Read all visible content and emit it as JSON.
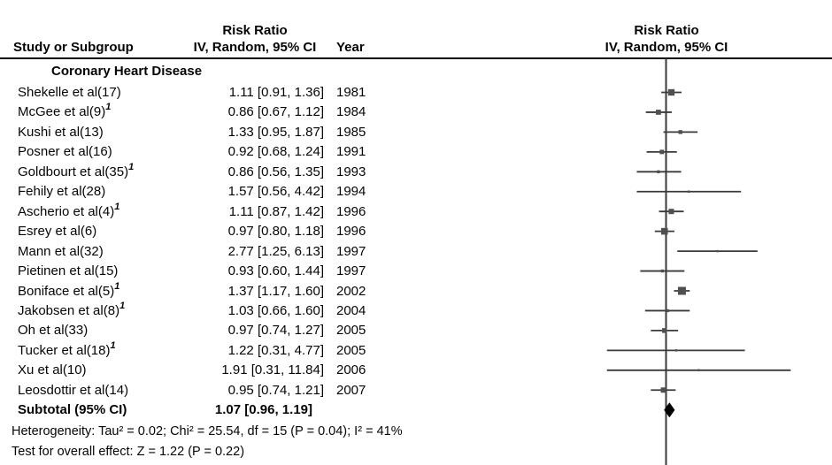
{
  "header": {
    "left_effect_title": "Risk Ratio",
    "left_effect_sub": "IV, Random, 95% CI",
    "study_col": "Study or Subgroup",
    "year_col": "Year",
    "right_effect_title": "Risk Ratio",
    "right_effect_sub": "IV, Random, 95% CI"
  },
  "subgroup_title": "Coronary Heart Disease",
  "chart_data": {
    "type": "forest",
    "effect_measure": "Risk Ratio",
    "model": "IV, Random, 95% CI",
    "x_scale": "log",
    "null_line_value": 1,
    "studies": [
      {
        "name": "Shekelle et al(17)",
        "sup": "",
        "rr": 1.11,
        "lo": 0.91,
        "hi": 1.36,
        "ci_text": "1.11 [0.91, 1.36]",
        "year": "1981"
      },
      {
        "name": "McGee et al(9)",
        "sup": "1",
        "rr": 0.86,
        "lo": 0.67,
        "hi": 1.12,
        "ci_text": "0.86 [0.67, 1.12]",
        "year": "1984"
      },
      {
        "name": "Kushi et al(13)",
        "sup": "",
        "rr": 1.33,
        "lo": 0.95,
        "hi": 1.87,
        "ci_text": "1.33 [0.95, 1.87]",
        "year": "1985"
      },
      {
        "name": "Posner et al(16)",
        "sup": "",
        "rr": 0.92,
        "lo": 0.68,
        "hi": 1.24,
        "ci_text": "0.92 [0.68, 1.24]",
        "year": "1991"
      },
      {
        "name": "Goldbourt et al(35)",
        "sup": "1",
        "rr": 0.86,
        "lo": 0.56,
        "hi": 1.35,
        "ci_text": "0.86 [0.56, 1.35]",
        "year": "1993"
      },
      {
        "name": "Fehily et al(28)",
        "sup": "",
        "rr": 1.57,
        "lo": 0.56,
        "hi": 4.42,
        "ci_text": "1.57 [0.56, 4.42]",
        "year": "1994"
      },
      {
        "name": "Ascherio et al(4)",
        "sup": "1",
        "rr": 1.11,
        "lo": 0.87,
        "hi": 1.42,
        "ci_text": "1.11 [0.87, 1.42]",
        "year": "1996"
      },
      {
        "name": "Esrey et al(6)",
        "sup": "",
        "rr": 0.97,
        "lo": 0.8,
        "hi": 1.18,
        "ci_text": "0.97 [0.80, 1.18]",
        "year": "1996"
      },
      {
        "name": "Mann et al(32)",
        "sup": "",
        "rr": 2.77,
        "lo": 1.25,
        "hi": 6.13,
        "ci_text": "2.77 [1.25, 6.13]",
        "year": "1997"
      },
      {
        "name": "Pietinen et al(15)",
        "sup": "",
        "rr": 0.93,
        "lo": 0.6,
        "hi": 1.44,
        "ci_text": "0.93 [0.60, 1.44]",
        "year": "1997"
      },
      {
        "name": "Boniface et al(5)",
        "sup": "1",
        "rr": 1.37,
        "lo": 1.17,
        "hi": 1.6,
        "ci_text": "1.37 [1.17, 1.60]",
        "year": "2002"
      },
      {
        "name": "Jakobsen et al(8)",
        "sup": "1",
        "rr": 1.03,
        "lo": 0.66,
        "hi": 1.6,
        "ci_text": "1.03 [0.66, 1.60]",
        "year": "2004"
      },
      {
        "name": "Oh et al(33)",
        "sup": "",
        "rr": 0.97,
        "lo": 0.74,
        "hi": 1.27,
        "ci_text": "0.97 [0.74, 1.27]",
        "year": "2005"
      },
      {
        "name": "Tucker et al(18)",
        "sup": "1",
        "rr": 1.22,
        "lo": 0.31,
        "hi": 4.77,
        "ci_text": "1.22 [0.31, 4.77]",
        "year": "2005"
      },
      {
        "name": "Xu et al(10)",
        "sup": "",
        "rr": 1.91,
        "lo": 0.31,
        "hi": 11.84,
        "ci_text": "1.91 [0.31, 11.84]",
        "year": "2006"
      },
      {
        "name": "Leosdottir et al(14)",
        "sup": "",
        "rr": 0.95,
        "lo": 0.74,
        "hi": 1.21,
        "ci_text": "0.95 [0.74, 1.21]",
        "year": "2007"
      }
    ],
    "subtotal": {
      "name": "Subtotal (95% CI)",
      "rr": 1.07,
      "lo": 0.96,
      "hi": 1.19,
      "ci_text": "1.07 [0.96, 1.19]"
    },
    "heterogeneity": "Heterogeneity: Tau² = 0.02; Chi² = 25.54, df = 15 (P = 0.04); I² = 41%",
    "overall_effect": "Test for overall effect: Z = 1.22 (P = 0.22)"
  },
  "colors": {
    "text": "#050505",
    "divider": "#000000",
    "axis_line": "#3a3a3a",
    "ci_line": "#3a3a3a",
    "marker": "#4f4f4f",
    "diamond": "#000000"
  }
}
